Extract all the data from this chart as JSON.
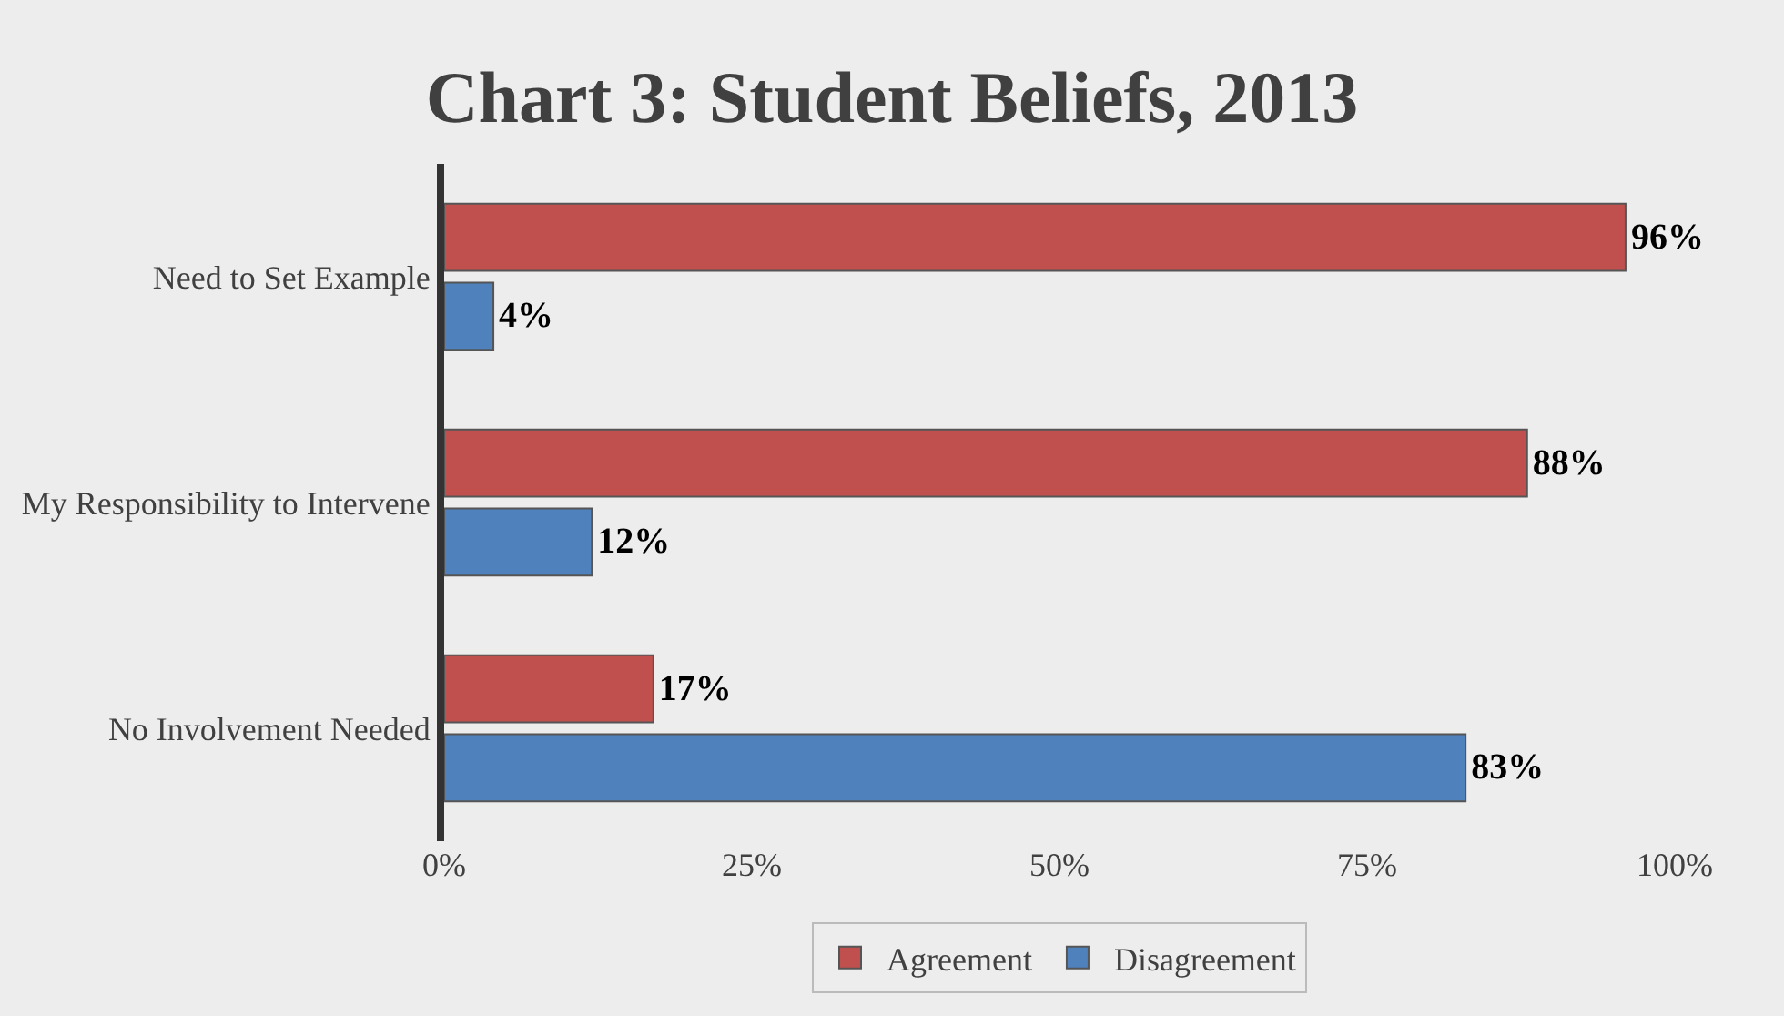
{
  "chart_data": {
    "type": "bar",
    "orientation": "horizontal",
    "title": "Chart 3: Student Beliefs, 2013",
    "categories": [
      "Need to Set Example",
      "My Responsibility to Intervene",
      "No Involvement Needed"
    ],
    "series": [
      {
        "name": "Agreement",
        "color": "#c0504d",
        "values": [
          96,
          88,
          17
        ],
        "value_labels": [
          "96%",
          "88%",
          "17%"
        ]
      },
      {
        "name": "Disagreement",
        "color": "#4f81bd",
        "values": [
          4,
          12,
          83
        ],
        "value_labels": [
          "4%",
          "12%",
          "83%"
        ]
      }
    ],
    "xlim": [
      0,
      100
    ],
    "xticks": [
      {
        "value": 0,
        "label": "0%"
      },
      {
        "value": 25,
        "label": "25%"
      },
      {
        "value": 50,
        "label": "50%"
      },
      {
        "value": 75,
        "label": "75%"
      },
      {
        "value": 100,
        "label": "100%"
      }
    ],
    "grid": false,
    "legend": "bottom"
  }
}
